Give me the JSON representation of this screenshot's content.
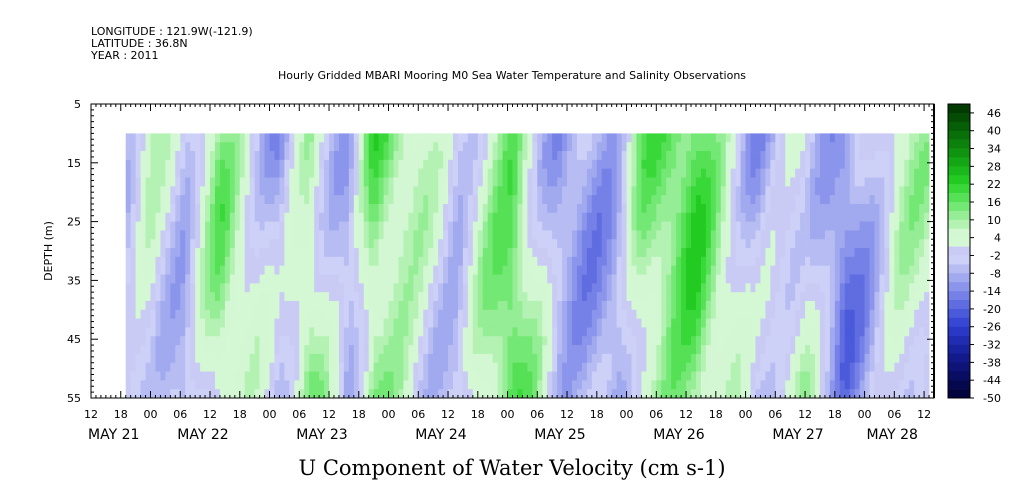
{
  "header": {
    "longitude": "LONGITUDE : 121.9W(-121.9)",
    "latitude": "LATITUDE : 36.8N",
    "year": "YEAR : 2011"
  },
  "chart_data": {
    "type": "heatmap",
    "title": "Hourly Gridded MBARI Mooring M0 Sea Water Temperature and Salinity Observations",
    "subtitle": "U Component of Water Velocity (cm s-1)",
    "ylabel": "DEPTH (m)",
    "xlabel": "",
    "ylim": [
      5,
      55
    ],
    "y_inverted": true,
    "y_ticks": [
      "5",
      "15",
      "25",
      "35",
      "45",
      "55"
    ],
    "x_hour_ticks": [
      "12",
      "18",
      "00",
      "06",
      "12",
      "18",
      "00",
      "06",
      "12",
      "18",
      "00",
      "06",
      "12",
      "18",
      "00",
      "06",
      "12",
      "18",
      "00",
      "06",
      "12",
      "18",
      "00",
      "06",
      "12",
      "18",
      "00",
      "06",
      "12"
    ],
    "x_range_hours": [
      0,
      170
    ],
    "day_labels": [
      {
        "label": "MAY 21",
        "hour": 0
      },
      {
        "label": "MAY 22",
        "hour": 18
      },
      {
        "label": "MAY 23",
        "hour": 42
      },
      {
        "label": "MAY 24",
        "hour": 66
      },
      {
        "label": "MAY 25",
        "hour": 90
      },
      {
        "label": "MAY 26",
        "hour": 114
      },
      {
        "label": "MAY 27",
        "hour": 138
      },
      {
        "label": "MAY 28",
        "hour": 157
      }
    ],
    "data_x_range_hours": [
      7,
      169
    ],
    "data_depth_range": [
      10,
      55
    ],
    "grid": false,
    "colorbar": {
      "labels": [
        "46",
        "40",
        "34",
        "28",
        "22",
        "16",
        "10",
        "4",
        "-2",
        "-8",
        "-14",
        "-20",
        "-26",
        "-32",
        "-38",
        "-44",
        "-50"
      ],
      "min": -50,
      "max": 49,
      "step": 3,
      "colors_positive": [
        "#ecfbec",
        "#d2f7d2",
        "#b4f2b4",
        "#95ed95",
        "#74e874",
        "#55e055",
        "#38d838",
        "#22ca22",
        "#1ab81a",
        "#14a614",
        "#109410",
        "#0c820c",
        "#097009",
        "#065e06",
        "#044c04",
        "#023a02",
        "#012a01"
      ],
      "colors_negative": [
        "#e2e4fb",
        "#cdd1f7",
        "#b7bdf3",
        "#a1a9ef",
        "#8b95eb",
        "#7581e6",
        "#5f6de1",
        "#4a5adb",
        "#3747d3",
        "#2a38c6",
        "#202db3",
        "#18239f",
        "#121a8b",
        "#0d1377",
        "#090d63",
        "#06084f",
        "#03043d"
      ]
    },
    "value_field": "U component of water velocity, cm/s, hourly at 1 m depth intervals (visual estimate)",
    "columns_by_hour": [
      {
        "hour": 8,
        "pattern": "mostly -2 to 4 near surface, -8 below 40 m"
      },
      {
        "hour": 12,
        "pattern": "4 to 10 throughout"
      },
      {
        "hour": 19,
        "pattern": "-8 to -14 near surface, 4 at depth"
      },
      {
        "hour": 26,
        "pattern": "10 to 16 near surface"
      },
      {
        "hour": 38,
        "pattern": "-8 mid-depth"
      },
      {
        "hour": 44,
        "pattern": "10 to 16 at 20-30 m"
      },
      {
        "hour": 52,
        "pattern": "-8 near surface"
      },
      {
        "hour": 57,
        "pattern": "16 to 22 near surface"
      },
      {
        "hour": 62,
        "pattern": "10 to 16 throughout"
      },
      {
        "hour": 74,
        "pattern": "-8 near surface, 10 at depth"
      },
      {
        "hour": 85,
        "pattern": "16 near surface"
      },
      {
        "hour": 94,
        "pattern": "-8 at 30-40 m"
      },
      {
        "hour": 106,
        "pattern": "-8 throughout"
      },
      {
        "hour": 111,
        "pattern": "10 to 16"
      },
      {
        "hour": 122,
        "pattern": "16 to 22 near surface"
      },
      {
        "hour": 134,
        "pattern": "-8 to -14 mid-depth"
      },
      {
        "hour": 144,
        "pattern": "4 to 10"
      },
      {
        "hour": 152,
        "pattern": "-14 at depth"
      },
      {
        "hour": 163,
        "pattern": "4 near surface"
      }
    ]
  }
}
